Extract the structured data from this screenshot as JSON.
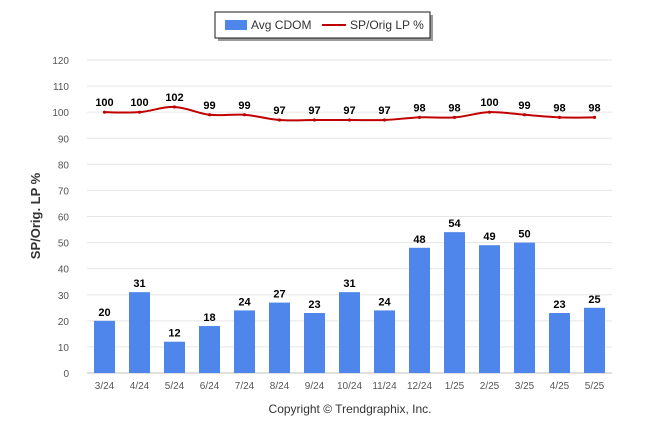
{
  "chart_data": {
    "type": "bar",
    "categories": [
      "3/24",
      "4/24",
      "5/24",
      "6/24",
      "7/24",
      "8/24",
      "9/24",
      "10/24",
      "11/24",
      "12/24",
      "1/25",
      "2/25",
      "3/25",
      "4/25",
      "5/25"
    ],
    "series": [
      {
        "name": "Avg CDOM",
        "type": "bar",
        "color": "#4f86ec",
        "values": [
          20,
          31,
          12,
          18,
          24,
          27,
          23,
          31,
          24,
          48,
          54,
          49,
          50,
          23,
          25
        ]
      },
      {
        "name": "SP/Orig LP %",
        "type": "line",
        "color": "#c00000",
        "values": [
          100,
          100,
          102,
          99,
          99,
          97,
          97,
          97,
          97,
          98,
          98,
          100,
          99,
          98,
          98
        ]
      }
    ],
    "ylabel": "SP/Orig. LP %",
    "xlabel": "",
    "ylim": [
      0,
      120
    ],
    "yticks": [
      0,
      10,
      20,
      30,
      40,
      50,
      60,
      70,
      80,
      90,
      100,
      110,
      120
    ],
    "grid": true,
    "legend_position": "top-center",
    "data_labels": true
  },
  "footer": {
    "credit": "Copyright © Trendgraphix, Inc."
  }
}
